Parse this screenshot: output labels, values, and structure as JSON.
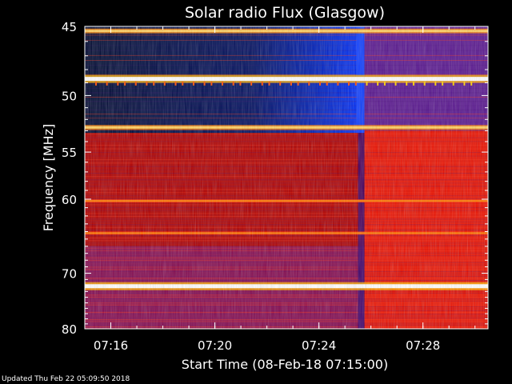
{
  "chart_data": {
    "type": "heatmap",
    "title": "Solar radio Flux (Glasgow)",
    "xlabel": "Start Time (08-Feb-18 07:15:00)",
    "ylabel": "Frequency [MHz]",
    "x_ticks": [
      "07:16",
      "07:20",
      "07:24",
      "07:28"
    ],
    "y_ticks": [
      "45",
      "50",
      "55",
      "60",
      "70",
      "80"
    ],
    "x_range_minutes": [
      0,
      15.5
    ],
    "y_range_mhz": [
      45,
      80
    ],
    "y_scale": "reciprocal",
    "colormap": [
      "#000000",
      "#000060",
      "#2030ff",
      "#9010a0",
      "#d00000",
      "#ff2000",
      "#ffa000",
      "#ffffff"
    ],
    "transition_time": "07:25:45",
    "features": [
      {
        "kind": "band",
        "freq_mhz": 45.3,
        "level": "high"
      },
      {
        "kind": "band",
        "freq_mhz": 48.7,
        "level": "very-high"
      },
      {
        "kind": "band",
        "freq_mhz": 52.7,
        "level": "high"
      },
      {
        "kind": "band",
        "freq_mhz": 60.2,
        "level": "medium"
      },
      {
        "kind": "band",
        "freq_mhz": 64.2,
        "level": "medium"
      },
      {
        "kind": "band",
        "freq_mhz": 72.1,
        "level": "very-high"
      }
    ]
  },
  "footer": {
    "updated": "Updated Thu Feb 22 05:09:50 2018"
  }
}
